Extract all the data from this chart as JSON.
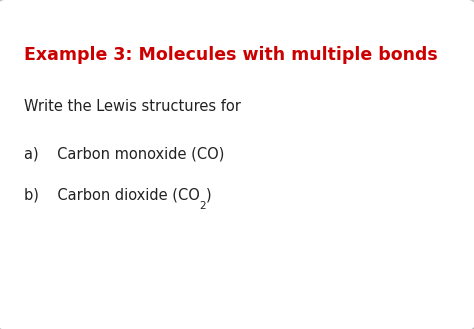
{
  "title": "Example 3: Molecules with multiple bonds",
  "title_color": "#cc0000",
  "title_fontsize": 12.5,
  "title_bold": true,
  "body_color": "#222222",
  "body_fontsize": 10.5,
  "item_a_prefix": "a)    Carbon monoxide (CO)",
  "item_b_text_1": "b)    Carbon dioxide (CO",
  "item_b_subscript": "2",
  "item_b_text_2": ")",
  "intro_text": "Write the Lewis structures for",
  "background_color": "#ffffff",
  "border_color": "#bbbbbb",
  "title_fx": 0.05,
  "title_fy": 0.86,
  "intro_fx": 0.05,
  "intro_fy": 0.7,
  "item_a_fx": 0.05,
  "item_a_fy": 0.555,
  "item_b_fx": 0.05,
  "item_b_fy": 0.43
}
